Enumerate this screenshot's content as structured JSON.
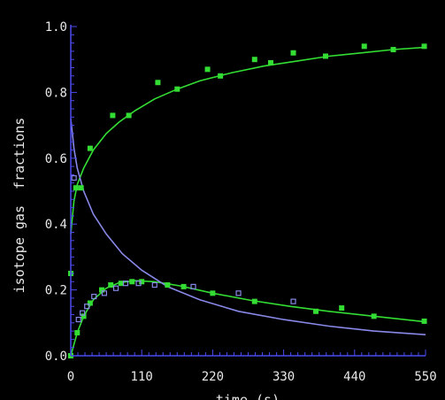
{
  "chart_data": {
    "type": "scatter",
    "title": "",
    "xlabel": "time (s)",
    "ylabel": "isotope gas  fractions",
    "xlim": [
      0,
      550
    ],
    "ylim": [
      0,
      1.0
    ],
    "xticks": [
      0,
      110,
      220,
      330,
      440,
      550
    ],
    "xtick_labels": [
      "0",
      "110",
      "220",
      "330",
      "440",
      "550"
    ],
    "yticks": [
      0,
      0.2,
      0.4,
      0.6,
      0.8,
      1.0
    ],
    "ytick_labels": [
      "0.0",
      "0.2",
      "0.4",
      "0.6",
      "0.8",
      "1.0"
    ],
    "grid": false,
    "colors": {
      "background": "#000000",
      "axis": "#4a4af0",
      "text": "#e8e8e8",
      "green": "#33dd33",
      "blue": "#8888e8"
    },
    "series": [
      {
        "color": "#33dd33",
        "marker": "square-filled",
        "points": [
          [
            0,
            0.25
          ],
          [
            8,
            0.51
          ],
          [
            16,
            0.51
          ],
          [
            30,
            0.63
          ],
          [
            65,
            0.73
          ],
          [
            90,
            0.73
          ],
          [
            135,
            0.83
          ],
          [
            165,
            0.81
          ],
          [
            212,
            0.87
          ],
          [
            232,
            0.85
          ],
          [
            285,
            0.9
          ],
          [
            310,
            0.89
          ],
          [
            345,
            0.92
          ],
          [
            395,
            0.91
          ],
          [
            455,
            0.94
          ],
          [
            500,
            0.93
          ],
          [
            548,
            0.94
          ]
        ],
        "fit": [
          [
            0,
            0.37
          ],
          [
            5,
            0.47
          ],
          [
            10,
            0.52
          ],
          [
            20,
            0.57
          ],
          [
            35,
            0.625
          ],
          [
            55,
            0.675
          ],
          [
            75,
            0.71
          ],
          [
            100,
            0.745
          ],
          [
            130,
            0.78
          ],
          [
            165,
            0.81
          ],
          [
            200,
            0.835
          ],
          [
            250,
            0.86
          ],
          [
            300,
            0.88
          ],
          [
            350,
            0.895
          ],
          [
            400,
            0.91
          ],
          [
            450,
            0.92
          ],
          [
            500,
            0.93
          ],
          [
            550,
            0.937
          ]
        ]
      },
      {
        "color": "#33dd33",
        "marker": "square-filled",
        "points": [
          [
            0,
            0.0
          ],
          [
            10,
            0.07
          ],
          [
            20,
            0.12
          ],
          [
            30,
            0.16
          ],
          [
            48,
            0.2
          ],
          [
            62,
            0.215
          ],
          [
            78,
            0.22
          ],
          [
            95,
            0.225
          ],
          [
            110,
            0.225
          ],
          [
            150,
            0.215
          ],
          [
            175,
            0.21
          ],
          [
            220,
            0.19
          ],
          [
            285,
            0.165
          ],
          [
            380,
            0.135
          ],
          [
            420,
            0.145
          ],
          [
            470,
            0.12
          ],
          [
            548,
            0.105
          ]
        ],
        "fit": [
          [
            0,
            0.0
          ],
          [
            10,
            0.07
          ],
          [
            20,
            0.12
          ],
          [
            35,
            0.17
          ],
          [
            55,
            0.205
          ],
          [
            75,
            0.222
          ],
          [
            100,
            0.228
          ],
          [
            130,
            0.225
          ],
          [
            170,
            0.212
          ],
          [
            220,
            0.19
          ],
          [
            280,
            0.168
          ],
          [
            340,
            0.15
          ],
          [
            400,
            0.135
          ],
          [
            460,
            0.122
          ],
          [
            550,
            0.103
          ]
        ]
      },
      {
        "color": "#8888e8",
        "marker": "square-open",
        "points": [
          [
            5,
            0.54
          ],
          [
            12,
            0.11
          ],
          [
            18,
            0.13
          ],
          [
            25,
            0.15
          ],
          [
            36,
            0.18
          ],
          [
            52,
            0.19
          ],
          [
            70,
            0.205
          ],
          [
            85,
            0.22
          ],
          [
            105,
            0.22
          ],
          [
            130,
            0.215
          ],
          [
            190,
            0.21
          ],
          [
            260,
            0.19
          ],
          [
            345,
            0.165
          ]
        ],
        "fit": [
          [
            0,
            0.72
          ],
          [
            5,
            0.63
          ],
          [
            10,
            0.57
          ],
          [
            20,
            0.5
          ],
          [
            35,
            0.43
          ],
          [
            55,
            0.37
          ],
          [
            80,
            0.31
          ],
          [
            110,
            0.26
          ],
          [
            150,
            0.21
          ],
          [
            200,
            0.17
          ],
          [
            260,
            0.135
          ],
          [
            330,
            0.11
          ],
          [
            400,
            0.09
          ],
          [
            470,
            0.075
          ],
          [
            550,
            0.064
          ]
        ]
      }
    ]
  }
}
